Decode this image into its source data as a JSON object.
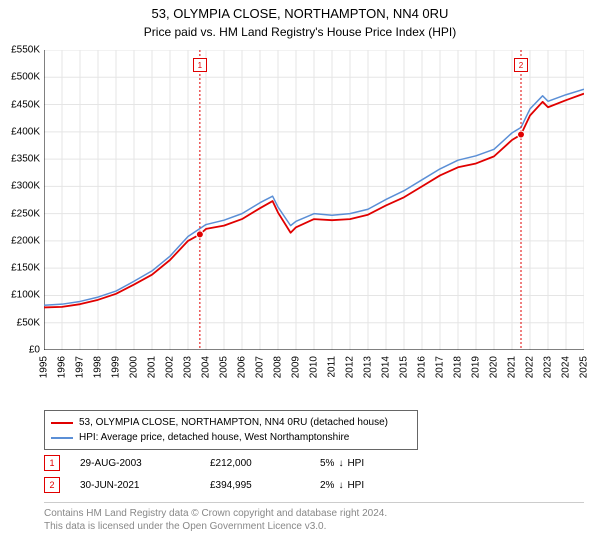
{
  "title": "53, OLYMPIA CLOSE, NORTHAMPTON, NN4 0RU",
  "subtitle": "Price paid vs. HM Land Registry's House Price Index (HPI)",
  "chart": {
    "type": "line",
    "background_color": "#ffffff",
    "grid_color": "#e5e5e5",
    "axis_color": "#000000",
    "x_years": [
      1995,
      1996,
      1997,
      1998,
      1999,
      2000,
      2001,
      2002,
      2003,
      2004,
      2005,
      2006,
      2007,
      2008,
      2009,
      2010,
      2011,
      2012,
      2013,
      2014,
      2015,
      2016,
      2017,
      2018,
      2019,
      2020,
      2021,
      2022,
      2023,
      2024,
      2025
    ],
    "y_ticks": [
      0,
      50000,
      100000,
      150000,
      200000,
      250000,
      300000,
      350000,
      400000,
      450000,
      500000,
      550000
    ],
    "y_tick_labels": [
      "£0",
      "£50K",
      "£100K",
      "£150K",
      "£200K",
      "£250K",
      "£300K",
      "£350K",
      "£400K",
      "£450K",
      "£500K",
      "£550K"
    ],
    "ylim": [
      0,
      550000
    ],
    "xlim": [
      1995,
      2025
    ],
    "series": [
      {
        "name": "property",
        "label": "53, OLYMPIA CLOSE, NORTHAMPTON, NN4 0RU (detached house)",
        "color": "#e00000",
        "line_width": 1.8,
        "data": [
          [
            1995,
            78000
          ],
          [
            1996,
            79000
          ],
          [
            1997,
            84000
          ],
          [
            1998,
            92000
          ],
          [
            1999,
            103000
          ],
          [
            2000,
            120000
          ],
          [
            2001,
            138000
          ],
          [
            2002,
            165000
          ],
          [
            2003,
            200000
          ],
          [
            2003.66,
            212000
          ],
          [
            2004,
            222000
          ],
          [
            2005,
            228000
          ],
          [
            2006,
            240000
          ],
          [
            2007,
            260000
          ],
          [
            2007.7,
            273000
          ],
          [
            2008,
            252000
          ],
          [
            2008.7,
            215000
          ],
          [
            2009,
            225000
          ],
          [
            2010,
            240000
          ],
          [
            2011,
            238000
          ],
          [
            2012,
            240000
          ],
          [
            2013,
            248000
          ],
          [
            2014,
            265000
          ],
          [
            2015,
            280000
          ],
          [
            2016,
            300000
          ],
          [
            2017,
            320000
          ],
          [
            2018,
            335000
          ],
          [
            2019,
            342000
          ],
          [
            2020,
            355000
          ],
          [
            2021,
            385000
          ],
          [
            2021.5,
            395000
          ],
          [
            2022,
            430000
          ],
          [
            2022.7,
            455000
          ],
          [
            2023,
            445000
          ],
          [
            2024,
            458000
          ],
          [
            2025,
            470000
          ]
        ]
      },
      {
        "name": "hpi",
        "label": "HPI: Average price, detached house, West Northamptonshire",
        "color": "#5b8fd6",
        "line_width": 1.5,
        "data": [
          [
            1995,
            82000
          ],
          [
            1996,
            84000
          ],
          [
            1997,
            89000
          ],
          [
            1998,
            97000
          ],
          [
            1999,
            108000
          ],
          [
            2000,
            126000
          ],
          [
            2001,
            145000
          ],
          [
            2002,
            172000
          ],
          [
            2003,
            208000
          ],
          [
            2004,
            230000
          ],
          [
            2005,
            238000
          ],
          [
            2006,
            250000
          ],
          [
            2007,
            270000
          ],
          [
            2007.7,
            282000
          ],
          [
            2008,
            262000
          ],
          [
            2008.7,
            228000
          ],
          [
            2009,
            236000
          ],
          [
            2010,
            250000
          ],
          [
            2011,
            247000
          ],
          [
            2012,
            250000
          ],
          [
            2013,
            258000
          ],
          [
            2014,
            276000
          ],
          [
            2015,
            292000
          ],
          [
            2016,
            312000
          ],
          [
            2017,
            332000
          ],
          [
            2018,
            348000
          ],
          [
            2019,
            356000
          ],
          [
            2020,
            368000
          ],
          [
            2021,
            398000
          ],
          [
            2021.5,
            408000
          ],
          [
            2022,
            442000
          ],
          [
            2022.7,
            466000
          ],
          [
            2023,
            456000
          ],
          [
            2024,
            468000
          ],
          [
            2025,
            478000
          ]
        ]
      }
    ],
    "sale_markers": [
      {
        "idx": "1",
        "x": 2003.66,
        "y": 212000
      },
      {
        "idx": "2",
        "x": 2021.5,
        "y": 394995
      }
    ],
    "marker_color": "#e00000",
    "marker_line_color": "#e00000",
    "marker_line_dash": "2,2",
    "label_fontsize": 10
  },
  "legend": {
    "items": [
      {
        "color": "#e00000",
        "text": "53, OLYMPIA CLOSE, NORTHAMPTON, NN4 0RU (detached house)"
      },
      {
        "color": "#5b8fd6",
        "text": "HPI: Average price, detached house, West Northamptonshire"
      }
    ]
  },
  "sales": [
    {
      "idx": "1",
      "date": "29-AUG-2003",
      "price": "£212,000",
      "diff_pct": "5%",
      "diff_dir": "↓",
      "diff_label": "HPI"
    },
    {
      "idx": "2",
      "date": "30-JUN-2021",
      "price": "£394,995",
      "diff_pct": "2%",
      "diff_dir": "↓",
      "diff_label": "HPI"
    }
  ],
  "footer": {
    "line1": "Contains HM Land Registry data © Crown copyright and database right 2024.",
    "line2": "This data is licensed under the Open Government Licence v3.0."
  }
}
